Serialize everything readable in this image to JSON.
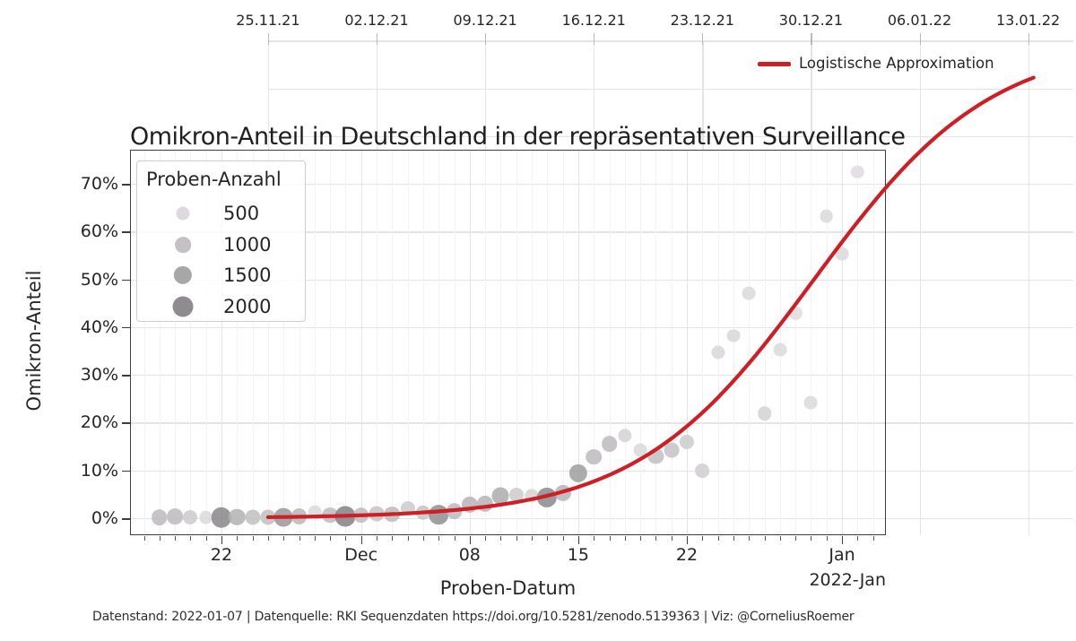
{
  "title": "Omikron-Anteil in Deutschland in der repräsentativen Surveillance",
  "footer": "Datenstand: 2022-01-07 | Datenquelle: RKI Sequenzdaten https://doi.org/10.5281/zenodo.5139363 | Viz: @CorneliusRoemer",
  "colors": {
    "line_red": "#cc2026",
    "text": "#262626",
    "grid_major": "#e4e4e8",
    "grid_minor": "#f3f3f5",
    "frame": "#3c3c42"
  },
  "line_legend": {
    "label": "Logistische Approximation"
  },
  "size_legend": {
    "title": "Proben-Anzahl",
    "entries": [
      {
        "label": "500",
        "n": 500
      },
      {
        "label": "1000",
        "n": 1000
      },
      {
        "label": "1500",
        "n": 1500
      },
      {
        "label": "2000",
        "n": 2000
      }
    ]
  },
  "axes": {
    "y_label": "Omikron-Anteil",
    "x_label": "Proben-Datum",
    "x_offset_label": "2022-Jan",
    "top_ticks": [
      {
        "label": "25.11.21",
        "d": 3
      },
      {
        "label": "02.12.21",
        "d": 10
      },
      {
        "label": "09.12.21",
        "d": 17
      },
      {
        "label": "16.12.21",
        "d": 24
      },
      {
        "label": "23.12.21",
        "d": 31
      },
      {
        "label": "30.12.21",
        "d": 38
      },
      {
        "label": "06.01.22",
        "d": 45
      },
      {
        "label": "13.01.22",
        "d": 52
      }
    ],
    "y_ticks": [
      {
        "label": "0%",
        "pct": 0
      },
      {
        "label": "10%",
        "pct": 10
      },
      {
        "label": "20%",
        "pct": 20
      },
      {
        "label": "30%",
        "pct": 30
      },
      {
        "label": "40%",
        "pct": 40
      },
      {
        "label": "50%",
        "pct": 50
      },
      {
        "label": "60%",
        "pct": 60
      },
      {
        "label": "70%",
        "pct": 70
      }
    ],
    "y_gridlines_outer": [
      80,
      90,
      100
    ],
    "bottom_ticks": [
      {
        "label": "22",
        "d": 0
      },
      {
        "label": "Dec",
        "d": 9
      },
      {
        "label": "08",
        "d": 16
      },
      {
        "label": "15",
        "d": 23
      },
      {
        "label": "22",
        "d": 30
      },
      {
        "label": "Jan",
        "d": 40
      }
    ]
  },
  "chart_data": {
    "type": "scatter",
    "title": "Omikron-Anteil in Deutschland in der repräsentativen Surveillance",
    "xlabel": "Proben-Datum",
    "ylabel": "Omikron-Anteil",
    "ylim_visible_pct": [
      0,
      70
    ],
    "grid": true,
    "note_d": "d = days since 2021-11-22; pct = Omicron share in %; n = sample count (dot size/darkness)",
    "points": [
      {
        "date": "2021-11-18",
        "d": -4,
        "pct": 0.2,
        "n": 1000
      },
      {
        "date": "2021-11-19",
        "d": -3,
        "pct": 0.3,
        "n": 1000
      },
      {
        "date": "2021-11-20",
        "d": -2,
        "pct": 0.2,
        "n": 700
      },
      {
        "date": "2021-11-21",
        "d": -1,
        "pct": 0.1,
        "n": 450
      },
      {
        "date": "2021-11-22",
        "d": 0,
        "pct": 0.15,
        "n": 1900
      },
      {
        "date": "2021-11-23",
        "d": 1,
        "pct": 0.2,
        "n": 1150
      },
      {
        "date": "2021-11-24",
        "d": 2,
        "pct": 0.2,
        "n": 900
      },
      {
        "date": "2021-11-25",
        "d": 3,
        "pct": 0.2,
        "n": 900
      },
      {
        "date": "2021-11-26",
        "d": 4,
        "pct": 0.1,
        "n": 1600
      },
      {
        "date": "2021-11-27",
        "d": 5,
        "pct": 0.4,
        "n": 1050
      },
      {
        "date": "2021-11-28",
        "d": 6,
        "pct": 1.3,
        "n": 450
      },
      {
        "date": "2021-11-29",
        "d": 7,
        "pct": 0.6,
        "n": 1000
      },
      {
        "date": "2021-11-30",
        "d": 8,
        "pct": 0.4,
        "n": 2000
      },
      {
        "date": "2021-12-01",
        "d": 9,
        "pct": 0.6,
        "n": 1000
      },
      {
        "date": "2021-12-02",
        "d": 10,
        "pct": 0.9,
        "n": 850
      },
      {
        "date": "2021-12-03",
        "d": 11,
        "pct": 0.8,
        "n": 1000
      },
      {
        "date": "2021-12-04",
        "d": 12,
        "pct": 2.1,
        "n": 700
      },
      {
        "date": "2021-12-05",
        "d": 13,
        "pct": 1.2,
        "n": 800
      },
      {
        "date": "2021-12-06",
        "d": 14,
        "pct": 0.7,
        "n": 1750
      },
      {
        "date": "2021-12-07",
        "d": 15,
        "pct": 1.5,
        "n": 1000
      },
      {
        "date": "2021-12-08",
        "d": 16,
        "pct": 2.8,
        "n": 1100
      },
      {
        "date": "2021-12-09",
        "d": 17,
        "pct": 3.0,
        "n": 1100
      },
      {
        "date": "2021-12-10",
        "d": 18,
        "pct": 4.7,
        "n": 1250
      },
      {
        "date": "2021-12-11",
        "d": 19,
        "pct": 4.9,
        "n": 700
      },
      {
        "date": "2021-12-12",
        "d": 20,
        "pct": 4.7,
        "n": 550
      },
      {
        "date": "2021-12-13",
        "d": 21,
        "pct": 4.3,
        "n": 1850
      },
      {
        "date": "2021-12-14",
        "d": 22,
        "pct": 5.3,
        "n": 1100
      },
      {
        "date": "2021-12-15",
        "d": 23,
        "pct": 9.4,
        "n": 1500
      },
      {
        "date": "2021-12-16",
        "d": 24,
        "pct": 12.8,
        "n": 1000
      },
      {
        "date": "2021-12-17",
        "d": 25,
        "pct": 15.6,
        "n": 1000
      },
      {
        "date": "2021-12-18",
        "d": 26,
        "pct": 17.3,
        "n": 550
      },
      {
        "date": "2021-12-19",
        "d": 27,
        "pct": 14.3,
        "n": 450
      },
      {
        "date": "2021-12-20",
        "d": 28,
        "pct": 13.0,
        "n": 900
      },
      {
        "date": "2021-12-21",
        "d": 29,
        "pct": 14.3,
        "n": 850
      },
      {
        "date": "2021-12-22",
        "d": 30,
        "pct": 16.0,
        "n": 700
      },
      {
        "date": "2021-12-23",
        "d": 31,
        "pct": 10.0,
        "n": 650
      },
      {
        "date": "2021-12-24",
        "d": 32,
        "pct": 34.7,
        "n": 500
      },
      {
        "date": "2021-12-25",
        "d": 33,
        "pct": 38.2,
        "n": 500
      },
      {
        "date": "2021-12-26",
        "d": 34,
        "pct": 47.1,
        "n": 450
      },
      {
        "date": "2021-12-27",
        "d": 35,
        "pct": 21.9,
        "n": 600
      },
      {
        "date": "2021-12-28",
        "d": 36,
        "pct": 35.3,
        "n": 450
      },
      {
        "date": "2021-12-29",
        "d": 37,
        "pct": 42.9,
        "n": 400
      },
      {
        "date": "2021-12-30",
        "d": 38,
        "pct": 24.2,
        "n": 450
      },
      {
        "date": "2021-12-31",
        "d": 39,
        "pct": 63.2,
        "n": 450
      },
      {
        "date": "2022-01-01",
        "d": 40,
        "pct": 55.3,
        "n": 450
      },
      {
        "date": "2022-01-02",
        "d": 41,
        "pct": 72.5,
        "n": 400
      }
    ],
    "logistic_fit": {
      "label": "Logistische Approximation",
      "model": "pct(d) = cap / (1 + exp(-k*(d - midpoint_d)))",
      "k": 0.175,
      "midpoint_d": 38.2,
      "cap": 100,
      "draw_from_d": 3,
      "draw_to_d": 52.7
    }
  }
}
